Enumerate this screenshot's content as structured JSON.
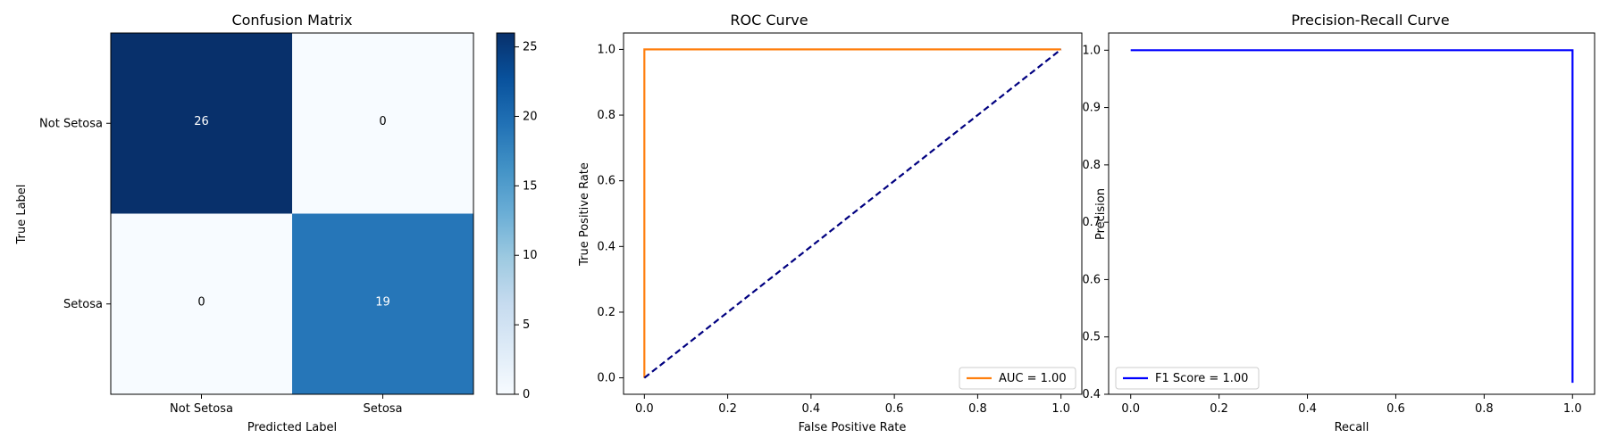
{
  "chart_data": [
    {
      "type": "heatmap",
      "title": "Confusion Matrix",
      "xlabel": "Predicted Label",
      "ylabel": "True Label",
      "x_categories": [
        "Not Setosa",
        "Setosa"
      ],
      "y_categories": [
        "Not Setosa",
        "Setosa"
      ],
      "values": [
        [
          26,
          0
        ],
        [
          0,
          19
        ]
      ],
      "colormap": "Blues",
      "colorbar": {
        "range": [
          0,
          26
        ],
        "ticks": [
          0,
          5,
          10,
          15,
          20,
          25
        ]
      },
      "colors": {
        "low": "#f7fbff",
        "mid": "#6baed6",
        "high": "#08306b"
      }
    },
    {
      "type": "line",
      "title": "ROC Curve",
      "xlabel": "False Positive Rate",
      "ylabel": "True Positive Rate",
      "xlim": [
        -0.05,
        1.05
      ],
      "ylim": [
        -0.05,
        1.05
      ],
      "xticks": [
        "0.0",
        "0.2",
        "0.4",
        "0.6",
        "0.8",
        "1.0"
      ],
      "yticks": [
        "0.0",
        "0.2",
        "0.4",
        "0.6",
        "0.8",
        "1.0"
      ],
      "grid": false,
      "legend_position": "lower-right",
      "series": [
        {
          "name": "AUC = 1.00",
          "x": [
            0.0,
            0.0,
            1.0
          ],
          "y": [
            0.0,
            1.0,
            1.0
          ],
          "color": "#ff7f0e",
          "style": "solid"
        },
        {
          "x": [
            0.0,
            1.0
          ],
          "y": [
            0.0,
            1.0
          ],
          "color": "#000080",
          "style": "dashed"
        }
      ]
    },
    {
      "type": "line",
      "title": "Precision-Recall Curve",
      "xlabel": "Recall",
      "ylabel": "Precision",
      "xlim": [
        -0.05,
        1.05
      ],
      "ylim": [
        0.4,
        1.03
      ],
      "xticks": [
        "0.0",
        "0.2",
        "0.4",
        "0.6",
        "0.8",
        "1.0"
      ],
      "yticks": [
        "0.4",
        "0.5",
        "0.6",
        "0.7",
        "0.8",
        "0.9",
        "1.0"
      ],
      "grid": false,
      "legend_position": "lower-left",
      "series": [
        {
          "name": "F1 Score = 1.00",
          "x": [
            0.0,
            1.0,
            1.0
          ],
          "y": [
            1.0,
            1.0,
            0.42
          ],
          "color": "#0000ff",
          "style": "solid"
        }
      ]
    }
  ]
}
